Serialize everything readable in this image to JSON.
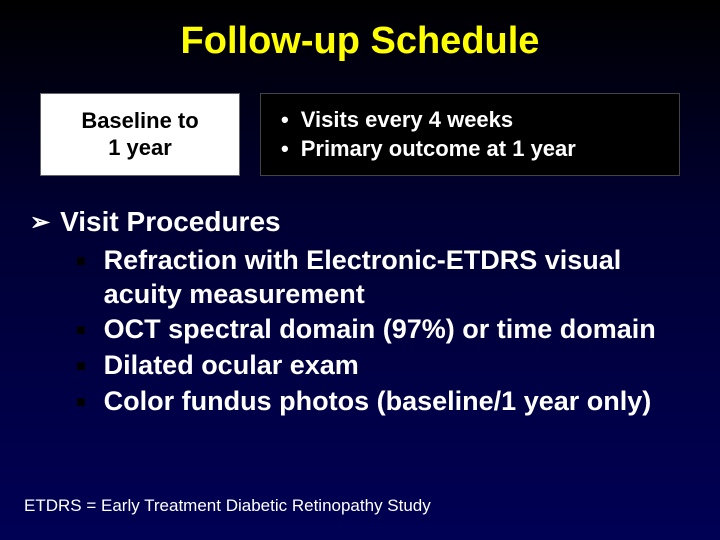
{
  "title": "Follow-up Schedule",
  "left_box": {
    "line1": "Baseline to",
    "line2": "1 year"
  },
  "right_box": {
    "items": [
      "Visits every 4 weeks",
      "Primary outcome at 1 year"
    ]
  },
  "procedures": {
    "heading": "Visit Procedures",
    "items": [
      "Refraction with Electronic-ETDRS visual acuity measurement",
      "OCT spectral domain (97%) or time domain",
      "Dilated ocular exam",
      "Color fundus photos (baseline/1 year only)"
    ]
  },
  "footnote": "ETDRS = Early Treatment Diabetic Retinopathy Study",
  "colors": {
    "title_color": "#ffff00",
    "text_color": "#ffffff",
    "left_box_bg": "#ffffff",
    "right_box_bg": "#000000",
    "background_top": "#000000",
    "background_bottom": "#000055"
  }
}
